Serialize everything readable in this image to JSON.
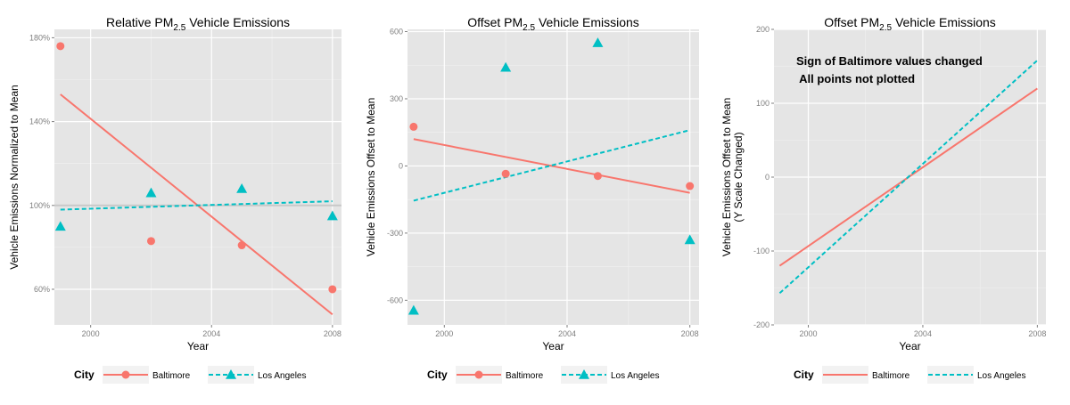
{
  "chart_data": [
    {
      "type": "scatter",
      "title_main": "Relative  PM",
      "title_sub": "2.5",
      "title_rest": "  Vehicle Emissions",
      "xlabel": "Year",
      "ylabel": "Vehicle Emissions Normalized to Mean",
      "ylabel2": "",
      "xlim": [
        1998.8,
        2008.3
      ],
      "ylim": [
        43,
        184
      ],
      "x_ticks": [
        2000,
        2004,
        2008
      ],
      "x_tick_labels": [
        "2000",
        "2004",
        "2008"
      ],
      "y_ticks": [
        60,
        100,
        140,
        180
      ],
      "y_tick_labels": [
        "60%",
        "100%",
        "140%",
        "180%"
      ],
      "hline": 100,
      "annotations": [],
      "series": [
        {
          "name": "Baltimore",
          "color": "#F8766D",
          "marker": "circle",
          "x": [
            1999,
            2002,
            2005,
            2008
          ],
          "y": [
            176,
            83,
            81,
            60
          ],
          "fit": [
            [
              1999,
              153
            ],
            [
              2008,
              48
            ]
          ]
        },
        {
          "name": "Los Angeles",
          "color": "#00BFC4",
          "marker": "triangle",
          "x": [
            1999,
            2002,
            2005,
            2008
          ],
          "y": [
            90,
            106,
            108,
            95
          ],
          "fit": [
            [
              1999,
              98
            ],
            [
              2008,
              102
            ]
          ]
        }
      ],
      "legend": {
        "title": "City",
        "placement": "bottom"
      }
    },
    {
      "type": "scatter",
      "title_main": "Offset  PM",
      "title_sub": "2.5",
      "title_rest": "  Vehicle Emissions",
      "xlabel": "Year",
      "ylabel": "Vehicle Emissions Offset to Mean",
      "ylabel2": "",
      "xlim": [
        1998.8,
        2008.3
      ],
      "ylim": [
        -710,
        610
      ],
      "x_ticks": [
        2000,
        2004,
        2008
      ],
      "x_tick_labels": [
        "2000",
        "2004",
        "2008"
      ],
      "y_ticks": [
        -600,
        -300,
        0,
        300,
        600
      ],
      "y_tick_labels": [
        "-600",
        "-300",
        "0",
        "300",
        "600"
      ],
      "hline": null,
      "annotations": [],
      "series": [
        {
          "name": "Baltimore",
          "color": "#F8766D",
          "marker": "circle",
          "x": [
            1999,
            2002,
            2005,
            2008
          ],
          "y": [
            175,
            -35,
            -45,
            -90
          ],
          "fit": [
            [
              1999,
              120
            ],
            [
              2008,
              -120
            ]
          ]
        },
        {
          "name": "Los Angeles",
          "color": "#00BFC4",
          "marker": "triangle",
          "x": [
            1999,
            2002,
            2005,
            2008
          ],
          "y": [
            -645,
            440,
            550,
            -330
          ],
          "fit": [
            [
              1999,
              -155
            ],
            [
              2008,
              160
            ]
          ]
        }
      ],
      "legend": {
        "title": "City",
        "placement": "bottom"
      }
    },
    {
      "type": "line",
      "title_main": "Offset  PM",
      "title_sub": "2.5",
      "title_rest": "  Vehicle Emissions",
      "xlabel": "Year",
      "ylabel": "Vehicle Emissions Offset to Mean",
      "ylabel2": "(Y Scale Changed)",
      "xlim": [
        1998.8,
        2008.3
      ],
      "ylim": [
        -200,
        200
      ],
      "x_ticks": [
        2000,
        2004,
        2008
      ],
      "x_tick_labels": [
        "2000",
        "2004",
        "2008"
      ],
      "y_ticks": [
        -200,
        -100,
        0,
        100,
        200
      ],
      "y_tick_labels": [
        "-200",
        "-100",
        "0",
        "100",
        "200"
      ],
      "hline": null,
      "annotations": [
        "Sign of Baltimore values changed",
        " All points not plotted"
      ],
      "series": [
        {
          "name": "Baltimore",
          "color": "#F8766D",
          "marker": "none",
          "x": [],
          "y": [],
          "fit": [
            [
              1999,
              -120
            ],
            [
              2008,
              120
            ]
          ]
        },
        {
          "name": "Los Angeles",
          "color": "#00BFC4",
          "marker": "none",
          "x": [],
          "y": [],
          "fit": [
            [
              1999,
              -157
            ],
            [
              2008,
              158
            ]
          ]
        }
      ],
      "legend": {
        "title": "City",
        "placement": "bottom"
      }
    }
  ]
}
